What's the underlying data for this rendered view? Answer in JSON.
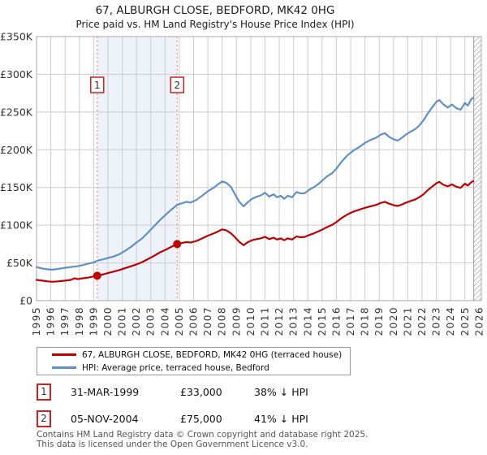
{
  "page": {
    "title": "67, ALBURGH CLOSE, BEDFORD, MK42 0HG",
    "subtitle": "Price paid vs. HM Land Registry's House Price Index (HPI)"
  },
  "chart_data": {
    "type": "line",
    "title": "67, ALBURGH CLOSE, BEDFORD, MK42 0HG",
    "subtitle": "Price paid vs. HM Land Registry's House Price Index (HPI)",
    "values_unit": "GBP thousands",
    "xlim": [
      1995,
      2026.15
    ],
    "ylim": [
      0,
      350
    ],
    "x_axis": {
      "ticks": [
        1995,
        1996,
        1997,
        1998,
        1999,
        2000,
        2001,
        2002,
        2003,
        2004,
        2005,
        2006,
        2007,
        2008,
        2009,
        2010,
        2011,
        2012,
        2013,
        2014,
        2015,
        2016,
        2017,
        2018,
        2019,
        2020,
        2021,
        2022,
        2023,
        2024,
        2025,
        2026
      ]
    },
    "y_axis": {
      "ticks": [
        {
          "value": 0,
          "label": "£0"
        },
        {
          "value": 50,
          "label": "£50K"
        },
        {
          "value": 100,
          "label": "£100K"
        },
        {
          "value": 150,
          "label": "£150K"
        },
        {
          "value": 200,
          "label": "£200K"
        },
        {
          "value": 250,
          "label": "£250K"
        },
        {
          "value": 300,
          "label": "£300K"
        },
        {
          "value": 350,
          "label": "£350K"
        }
      ]
    },
    "colors": {
      "price": "#c00000",
      "hpi": "#6090c6",
      "grid": "#cccccc",
      "border": "#aaaaaa",
      "shade": "#eef2fb",
      "dashed": "#ea8c8c",
      "flag_border": "#cc2222",
      "hatch": "#c0c0c0"
    },
    "shaded_region": {
      "from": 1999.25,
      "to": 2004.85
    },
    "future_from": 2025.62,
    "sale_markers": [
      {
        "label": "1",
        "year": 1999.25,
        "price_k": 33
      },
      {
        "label": "2",
        "year": 2004.85,
        "price_k": 75
      }
    ],
    "series": [
      {
        "name": "67, ALBURGH CLOSE, BEDFORD, MK42 0HG (terraced house)",
        "data_name": "price-paid-line",
        "color": "#c00000",
        "points": [
          [
            1995.0,
            27.5
          ],
          [
            1995.4,
            26.5
          ],
          [
            1995.8,
            25.5
          ],
          [
            1996.1,
            25
          ],
          [
            1996.5,
            25.5
          ],
          [
            1997.0,
            26.5
          ],
          [
            1997.4,
            27.5
          ],
          [
            1997.65,
            29.5
          ],
          [
            1997.9,
            28.5
          ],
          [
            1998.2,
            29.5
          ],
          [
            1998.6,
            30.5
          ],
          [
            1999.0,
            32
          ],
          [
            1999.25,
            33
          ],
          [
            1999.6,
            34.5
          ],
          [
            2000.0,
            36.5
          ],
          [
            2000.4,
            38.5
          ],
          [
            2000.8,
            40.5
          ],
          [
            2001.2,
            43
          ],
          [
            2001.6,
            45.5
          ],
          [
            2002.0,
            48
          ],
          [
            2002.4,
            51
          ],
          [
            2002.8,
            55
          ],
          [
            2003.2,
            59
          ],
          [
            2003.6,
            63.5
          ],
          [
            2004.0,
            67
          ],
          [
            2004.4,
            71
          ],
          [
            2004.85,
            75
          ],
          [
            2005.2,
            76.5
          ],
          [
            2005.5,
            77.5
          ],
          [
            2005.8,
            77
          ],
          [
            2006.2,
            79
          ],
          [
            2006.6,
            82.5
          ],
          [
            2007.0,
            86
          ],
          [
            2007.4,
            89
          ],
          [
            2007.7,
            91.5
          ],
          [
            2008.0,
            94.5
          ],
          [
            2008.3,
            93
          ],
          [
            2008.6,
            89.5
          ],
          [
            2008.9,
            84
          ],
          [
            2009.2,
            78
          ],
          [
            2009.5,
            73.5
          ],
          [
            2009.8,
            77.5
          ],
          [
            2010.1,
            80
          ],
          [
            2010.4,
            81.5
          ],
          [
            2010.7,
            82.5
          ],
          [
            2011.0,
            84.5
          ],
          [
            2011.3,
            81.5
          ],
          [
            2011.6,
            83.5
          ],
          [
            2011.85,
            81
          ],
          [
            2012.1,
            82.5
          ],
          [
            2012.35,
            80
          ],
          [
            2012.6,
            82.5
          ],
          [
            2012.9,
            81
          ],
          [
            2013.2,
            85
          ],
          [
            2013.5,
            84
          ],
          [
            2013.8,
            84.5
          ],
          [
            2014.1,
            87
          ],
          [
            2014.4,
            89
          ],
          [
            2014.7,
            91.5
          ],
          [
            2015.0,
            94
          ],
          [
            2015.3,
            97
          ],
          [
            2015.7,
            100.5
          ],
          [
            2016.0,
            104
          ],
          [
            2016.4,
            110
          ],
          [
            2016.8,
            114.5
          ],
          [
            2017.2,
            118
          ],
          [
            2017.6,
            120.5
          ],
          [
            2018.0,
            123
          ],
          [
            2018.4,
            125
          ],
          [
            2018.8,
            127
          ],
          [
            2019.1,
            129.5
          ],
          [
            2019.4,
            131
          ],
          [
            2019.7,
            128.5
          ],
          [
            2020.0,
            126.5
          ],
          [
            2020.3,
            125.5
          ],
          [
            2020.6,
            127.5
          ],
          [
            2020.9,
            130
          ],
          [
            2021.2,
            132
          ],
          [
            2021.5,
            134
          ],
          [
            2021.8,
            137
          ],
          [
            2022.1,
            141
          ],
          [
            2022.4,
            146.5
          ],
          [
            2022.7,
            151
          ],
          [
            2023.0,
            155.5
          ],
          [
            2023.2,
            157.5
          ],
          [
            2023.5,
            153.5
          ],
          [
            2023.8,
            151.5
          ],
          [
            2024.1,
            154
          ],
          [
            2024.4,
            151
          ],
          [
            2024.7,
            149.5
          ],
          [
            2025.0,
            155
          ],
          [
            2025.2,
            152.5
          ],
          [
            2025.45,
            157
          ],
          [
            2025.6,
            158.5
          ]
        ]
      },
      {
        "name": "HPI: Average price, terraced house, Bedford",
        "data_name": "hpi-line",
        "color": "#6090c6",
        "points": [
          [
            1995.0,
            44.5
          ],
          [
            1995.4,
            42.5
          ],
          [
            1995.8,
            41.5
          ],
          [
            1996.1,
            41
          ],
          [
            1996.5,
            42
          ],
          [
            1997.0,
            43.5
          ],
          [
            1997.4,
            44.5
          ],
          [
            1997.8,
            45.5
          ],
          [
            1998.2,
            47
          ],
          [
            1998.6,
            49
          ],
          [
            1999.0,
            50.5
          ],
          [
            1999.25,
            53
          ],
          [
            1999.6,
            54.5
          ],
          [
            2000.0,
            56.5
          ],
          [
            2000.4,
            58.5
          ],
          [
            2000.8,
            61.5
          ],
          [
            2001.2,
            66
          ],
          [
            2001.6,
            71
          ],
          [
            2002.0,
            77
          ],
          [
            2002.4,
            82.5
          ],
          [
            2002.8,
            90
          ],
          [
            2003.2,
            98
          ],
          [
            2003.6,
            106
          ],
          [
            2004.0,
            113
          ],
          [
            2004.4,
            120
          ],
          [
            2004.85,
            127
          ],
          [
            2005.2,
            129
          ],
          [
            2005.5,
            131
          ],
          [
            2005.8,
            130
          ],
          [
            2006.2,
            133.5
          ],
          [
            2006.6,
            139
          ],
          [
            2007.0,
            145
          ],
          [
            2007.4,
            149.5
          ],
          [
            2007.7,
            154
          ],
          [
            2008.0,
            158
          ],
          [
            2008.3,
            156
          ],
          [
            2008.6,
            151
          ],
          [
            2008.9,
            141
          ],
          [
            2009.2,
            131
          ],
          [
            2009.5,
            125
          ],
          [
            2009.8,
            130.5
          ],
          [
            2010.1,
            135
          ],
          [
            2010.4,
            137.5
          ],
          [
            2010.7,
            139.5
          ],
          [
            2011.0,
            143
          ],
          [
            2011.3,
            138
          ],
          [
            2011.6,
            141
          ],
          [
            2011.85,
            137
          ],
          [
            2012.1,
            139
          ],
          [
            2012.35,
            135
          ],
          [
            2012.6,
            139
          ],
          [
            2012.9,
            137
          ],
          [
            2013.2,
            144
          ],
          [
            2013.5,
            142
          ],
          [
            2013.8,
            142.5
          ],
          [
            2014.1,
            147
          ],
          [
            2014.4,
            150
          ],
          [
            2014.7,
            154
          ],
          [
            2015.0,
            159
          ],
          [
            2015.3,
            164
          ],
          [
            2015.7,
            169
          ],
          [
            2016.0,
            175
          ],
          [
            2016.4,
            185
          ],
          [
            2016.8,
            193
          ],
          [
            2017.2,
            199
          ],
          [
            2017.6,
            203.5
          ],
          [
            2018.0,
            209
          ],
          [
            2018.4,
            213
          ],
          [
            2018.8,
            216
          ],
          [
            2019.1,
            220
          ],
          [
            2019.4,
            222
          ],
          [
            2019.7,
            217
          ],
          [
            2020.0,
            214
          ],
          [
            2020.3,
            212
          ],
          [
            2020.6,
            216
          ],
          [
            2020.9,
            220.5
          ],
          [
            2021.2,
            224
          ],
          [
            2021.5,
            227
          ],
          [
            2021.8,
            232
          ],
          [
            2022.1,
            239
          ],
          [
            2022.4,
            248
          ],
          [
            2022.7,
            256
          ],
          [
            2023.0,
            263.5
          ],
          [
            2023.2,
            266
          ],
          [
            2023.5,
            260
          ],
          [
            2023.8,
            256
          ],
          [
            2024.1,
            260
          ],
          [
            2024.4,
            255
          ],
          [
            2024.7,
            253
          ],
          [
            2025.0,
            262
          ],
          [
            2025.2,
            258.5
          ],
          [
            2025.45,
            267
          ],
          [
            2025.6,
            269
          ]
        ]
      }
    ]
  },
  "legend": {
    "items": [
      {
        "label": "67, ALBURGH CLOSE, BEDFORD, MK42 0HG (terraced house)",
        "color": "#c00000"
      },
      {
        "label": "HPI: Average price, terraced house, Bedford",
        "color": "#6090c6"
      }
    ]
  },
  "annotations": [
    {
      "num": "1",
      "date": "31-MAR-1999",
      "price": "£33,000",
      "vs_hpi": "38% ↓ HPI"
    },
    {
      "num": "2",
      "date": "05-NOV-2004",
      "price": "£75,000",
      "vs_hpi": "41% ↓ HPI"
    }
  ],
  "footer": {
    "line1": "Contains HM Land Registry data © Crown copyright and database right 2025.",
    "line2": "This data is licensed under the Open Government Licence v3.0."
  }
}
